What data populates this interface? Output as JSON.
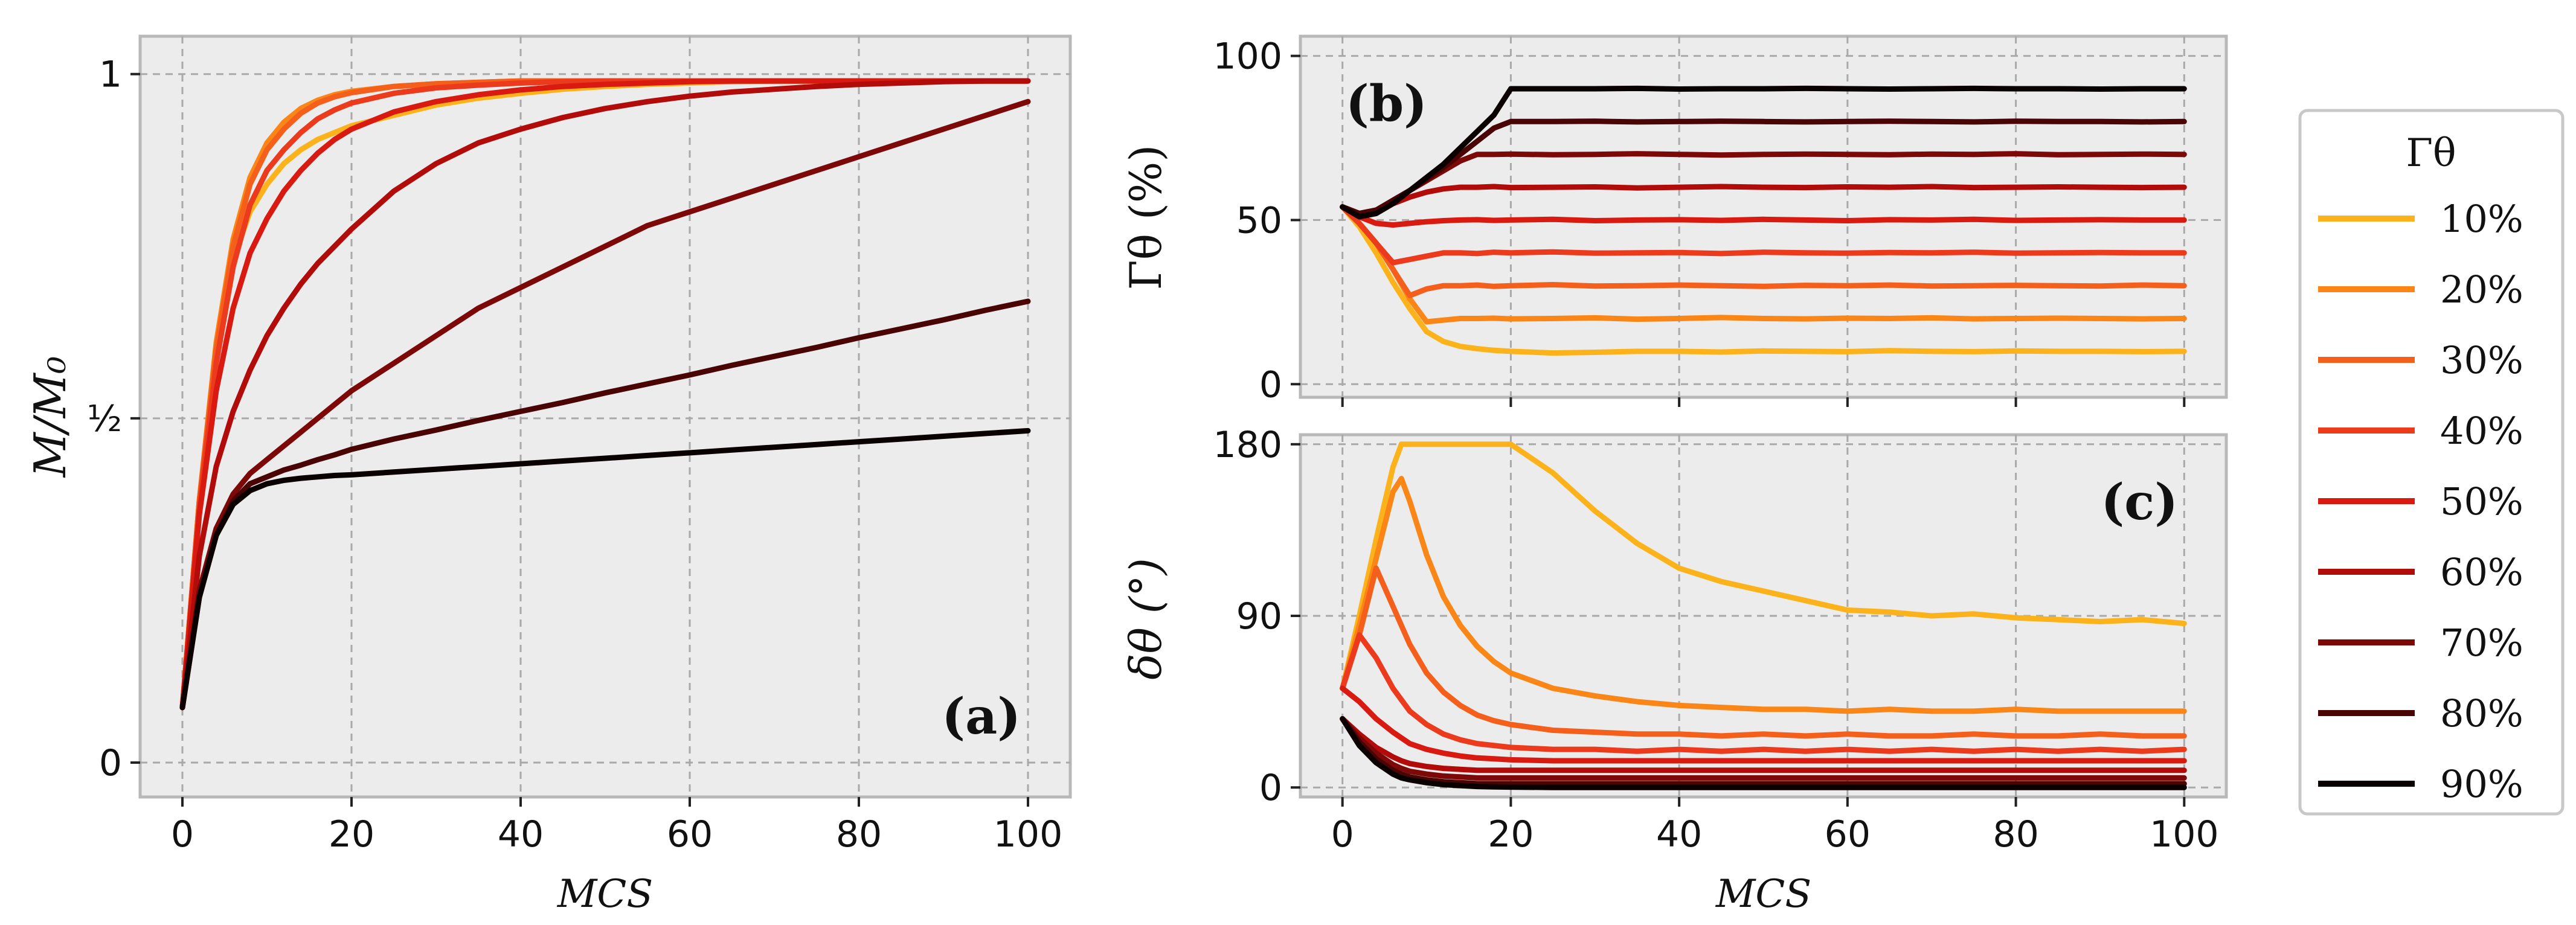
{
  "colors": {
    "panel_bg": "#ececec",
    "grid": "#a9a9a9",
    "series": [
      "#fcb31b",
      "#f98617",
      "#f45f1c",
      "#ec3a1c",
      "#d91a11",
      "#b20c0a",
      "#7d0808",
      "#4a0404",
      "#0a0000"
    ]
  },
  "chart_data": [
    {
      "panel": "a",
      "type": "line",
      "panel_label": "(a)",
      "xlabel": "MCS",
      "ylabel": "M/M₀",
      "xlim": [
        -5,
        105
      ],
      "ylim": [
        -0.05,
        1.055
      ],
      "xticks": [
        0,
        20,
        40,
        60,
        80,
        100
      ],
      "xtick_labels": [
        "0",
        "20",
        "40",
        "60",
        "80",
        "100"
      ],
      "yticks": [
        0,
        0.5,
        1
      ],
      "ytick_labels": [
        "0",
        "½",
        "1"
      ],
      "grid": true,
      "x": [
        0,
        2,
        4,
        6,
        8,
        10,
        12,
        14,
        16,
        18,
        20,
        25,
        30,
        35,
        40,
        45,
        50,
        55,
        60,
        65,
        70,
        75,
        80,
        85,
        90,
        95,
        100
      ],
      "series": [
        {
          "name": "10%",
          "values": [
            0.08,
            0.38,
            0.59,
            0.73,
            0.8,
            0.84,
            0.87,
            0.89,
            0.905,
            0.915,
            0.925,
            0.94,
            0.955,
            0.965,
            0.972,
            0.978,
            0.982,
            0.985,
            0.987,
            0.989,
            0.99,
            0.99,
            0.99,
            0.99,
            0.99,
            0.99,
            0.99
          ]
        },
        {
          "name": "20%",
          "values": [
            0.08,
            0.38,
            0.61,
            0.76,
            0.85,
            0.9,
            0.93,
            0.95,
            0.962,
            0.97,
            0.975,
            0.982,
            0.986,
            0.988,
            0.99,
            0.99,
            0.99,
            0.99,
            0.99,
            0.99,
            0.99,
            0.99,
            0.99,
            0.99,
            0.99,
            0.99,
            0.99
          ]
        },
        {
          "name": "30%",
          "values": [
            0.08,
            0.38,
            0.6,
            0.75,
            0.84,
            0.89,
            0.92,
            0.943,
            0.958,
            0.967,
            0.973,
            0.982,
            0.986,
            0.988,
            0.99,
            0.99,
            0.99,
            0.99,
            0.99,
            0.99,
            0.99,
            0.99,
            0.99,
            0.99,
            0.99,
            0.99,
            0.99
          ]
        },
        {
          "name": "40%",
          "values": [
            0.08,
            0.37,
            0.58,
            0.72,
            0.81,
            0.86,
            0.89,
            0.915,
            0.935,
            0.948,
            0.958,
            0.972,
            0.98,
            0.984,
            0.987,
            0.989,
            0.99,
            0.99,
            0.99,
            0.99,
            0.99,
            0.99,
            0.99,
            0.99,
            0.99,
            0.99,
            0.99
          ]
        },
        {
          "name": "50%",
          "values": [
            0.08,
            0.36,
            0.54,
            0.66,
            0.74,
            0.79,
            0.83,
            0.86,
            0.885,
            0.905,
            0.92,
            0.945,
            0.96,
            0.97,
            0.977,
            0.982,
            0.985,
            0.987,
            0.989,
            0.99,
            0.99,
            0.99,
            0.99,
            0.99,
            0.99,
            0.99,
            0.99
          ]
        },
        {
          "name": "60%",
          "values": [
            0.08,
            0.3,
            0.43,
            0.51,
            0.57,
            0.62,
            0.66,
            0.695,
            0.725,
            0.75,
            0.775,
            0.83,
            0.87,
            0.9,
            0.92,
            0.937,
            0.95,
            0.96,
            0.968,
            0.974,
            0.978,
            0.982,
            0.985,
            0.987,
            0.989,
            0.99,
            0.99
          ]
        },
        {
          "name": "70%",
          "values": [
            0.08,
            0.25,
            0.34,
            0.39,
            0.42,
            0.44,
            0.46,
            0.48,
            0.5,
            0.52,
            0.54,
            0.58,
            0.62,
            0.66,
            0.69,
            0.72,
            0.75,
            0.78,
            0.8,
            0.82,
            0.84,
            0.86,
            0.88,
            0.9,
            0.92,
            0.94,
            0.96
          ]
        },
        {
          "name": "80%",
          "values": [
            0.08,
            0.24,
            0.33,
            0.38,
            0.405,
            0.415,
            0.425,
            0.432,
            0.44,
            0.447,
            0.455,
            0.47,
            0.483,
            0.497,
            0.51,
            0.523,
            0.537,
            0.55,
            0.563,
            0.577,
            0.59,
            0.603,
            0.617,
            0.63,
            0.643,
            0.657,
            0.67
          ]
        },
        {
          "name": "90%",
          "values": [
            0.08,
            0.24,
            0.33,
            0.375,
            0.395,
            0.405,
            0.41,
            0.413,
            0.415,
            0.417,
            0.418,
            0.422,
            0.426,
            0.43,
            0.434,
            0.438,
            0.442,
            0.446,
            0.45,
            0.454,
            0.458,
            0.462,
            0.466,
            0.47,
            0.474,
            0.478,
            0.482
          ]
        }
      ]
    },
    {
      "panel": "b",
      "type": "line",
      "panel_label": "(b)",
      "xlabel": "",
      "ylabel": "Γθ (%)",
      "xlim": [
        -5,
        105
      ],
      "ylim": [
        -4,
        106
      ],
      "xticks": [
        0,
        20,
        40,
        60,
        80,
        100
      ],
      "xtick_labels": [],
      "yticks": [
        0,
        50,
        100
      ],
      "ytick_labels": [
        "0",
        "50",
        "100"
      ],
      "grid": true,
      "x": [
        0,
        2,
        4,
        6,
        8,
        10,
        12,
        14,
        16,
        18,
        20,
        25,
        30,
        35,
        40,
        45,
        50,
        55,
        60,
        65,
        70,
        75,
        80,
        85,
        90,
        95,
        100
      ],
      "series": [
        {
          "name": "10%",
          "values": [
            54,
            48,
            40,
            31,
            23,
            16,
            13,
            11.5,
            10.8,
            10.3,
            10,
            9.5,
            9.7,
            10,
            10,
            9.8,
            10.1,
            10,
            9.9,
            10.2,
            10,
            9.9,
            10.1,
            10,
            10,
            9.9,
            10
          ]
        },
        {
          "name": "20%",
          "values": [
            54,
            49,
            43,
            35,
            26,
            19,
            19.5,
            20,
            20,
            20.1,
            19.9,
            20,
            20.2,
            19.8,
            20,
            20.3,
            20,
            19.9,
            20.1,
            20,
            20.2,
            19.9,
            20,
            20.1,
            20,
            19.9,
            20
          ]
        },
        {
          "name": "30%",
          "values": [
            54,
            49,
            43,
            35,
            27,
            29,
            30,
            30,
            30.2,
            29.8,
            30,
            30.3,
            29.9,
            30,
            30.2,
            30,
            29.8,
            30.1,
            30,
            30.2,
            29.9,
            30,
            30.1,
            30,
            29.9,
            30.2,
            30
          ]
        },
        {
          "name": "40%",
          "values": [
            54,
            49,
            43,
            37,
            38,
            39,
            40,
            40,
            39.8,
            40.2,
            40,
            40.3,
            39.9,
            40,
            40.1,
            39.8,
            40.2,
            40,
            39.9,
            40.1,
            40,
            40.2,
            39.9,
            40,
            40.1,
            40,
            40
          ]
        },
        {
          "name": "50%",
          "values": [
            54,
            51,
            49,
            48.5,
            49,
            49.5,
            49.8,
            50,
            50.1,
            49.9,
            50,
            50.2,
            49.8,
            50,
            50.1,
            49.9,
            50.2,
            50,
            49.8,
            50.1,
            50,
            50.2,
            49.9,
            50,
            50.1,
            50,
            50
          ]
        },
        {
          "name": "60%",
          "values": [
            54,
            52,
            53,
            55,
            57,
            58.5,
            59.5,
            60,
            60,
            60.2,
            59.9,
            60,
            60.1,
            59.8,
            60,
            60.2,
            60,
            59.9,
            60.1,
            60,
            60.2,
            59.9,
            60,
            60.1,
            60,
            59.9,
            60
          ]
        },
        {
          "name": "70%",
          "values": [
            54,
            52,
            53,
            56,
            59,
            62,
            65,
            68,
            70,
            70,
            70.1,
            69.9,
            70,
            70.2,
            70,
            69.8,
            70,
            70.1,
            70,
            69.9,
            70.1,
            70,
            70.2,
            69.9,
            70,
            70.1,
            70
          ]
        },
        {
          "name": "80%",
          "values": [
            54,
            52,
            53,
            56,
            59,
            62.5,
            66,
            70,
            74,
            78,
            80,
            80,
            80.1,
            79.9,
            80,
            80.1,
            80,
            79.9,
            80,
            80.1,
            80,
            79.9,
            80.1,
            80,
            80,
            79.9,
            80
          ]
        },
        {
          "name": "90%",
          "values": [
            54,
            51,
            52,
            55,
            59,
            63,
            67,
            72,
            77,
            82,
            90,
            90,
            90,
            90.1,
            89.9,
            90,
            90,
            90.1,
            90,
            89.9,
            90,
            90.1,
            90,
            90,
            89.9,
            90,
            90
          ]
        }
      ]
    },
    {
      "panel": "c",
      "type": "line",
      "panel_label": "(c)",
      "xlabel": "MCS",
      "ylabel": "δθ (°)",
      "xlim": [
        -5,
        105
      ],
      "ylim": [
        -5,
        185
      ],
      "xticks": [
        0,
        20,
        40,
        60,
        80,
        100
      ],
      "xtick_labels": [
        "0",
        "20",
        "40",
        "60",
        "80",
        "100"
      ],
      "yticks": [
        0,
        90,
        180
      ],
      "ytick_labels": [
        "0",
        "90",
        "180"
      ],
      "grid": true,
      "x": [
        0,
        2,
        4,
        6,
        7,
        8,
        10,
        12,
        14,
        16,
        18,
        20,
        25,
        30,
        35,
        40,
        45,
        50,
        55,
        60,
        65,
        70,
        75,
        80,
        85,
        90,
        95,
        100
      ],
      "series": [
        {
          "name": "10%",
          "values": [
            52,
            90,
            130,
            168,
            180,
            180,
            180,
            180,
            180,
            180,
            180,
            180,
            165,
            145,
            128,
            115,
            108,
            103,
            98,
            93,
            92,
            90,
            91,
            89,
            88,
            87,
            88,
            86
          ]
        },
        {
          "name": "20%",
          "values": [
            52,
            85,
            120,
            155,
            162,
            150,
            122,
            100,
            85,
            74,
            66,
            60,
            52,
            48,
            45,
            43,
            42,
            41,
            41,
            40,
            41,
            40,
            40,
            41,
            40,
            40,
            40,
            40
          ]
        },
        {
          "name": "30%",
          "values": [
            52,
            80,
            115,
            95,
            85,
            75,
            60,
            50,
            43,
            38,
            35,
            33,
            30,
            29,
            28,
            28,
            27,
            28,
            27,
            28,
            27,
            27,
            28,
            27,
            27,
            28,
            27,
            27
          ]
        },
        {
          "name": "40%",
          "values": [
            52,
            80,
            68,
            52,
            46,
            40,
            33,
            28,
            25,
            23,
            22,
            21,
            20,
            20,
            19,
            20,
            19,
            20,
            19,
            20,
            19,
            20,
            19,
            20,
            19,
            20,
            19,
            20
          ]
        },
        {
          "name": "50%",
          "values": [
            52,
            45,
            36,
            29,
            26,
            23,
            20,
            18,
            16.5,
            15.5,
            15,
            14.5,
            14,
            14,
            14,
            14,
            14,
            14,
            14,
            14,
            14,
            14,
            14,
            14,
            14,
            14,
            14,
            14
          ]
        },
        {
          "name": "60%",
          "values": [
            36,
            28,
            21,
            16,
            14,
            12.5,
            11,
            10,
            9.5,
            9,
            9,
            9,
            9,
            9,
            9,
            9,
            9,
            9,
            9,
            9,
            9,
            9,
            9,
            9,
            9,
            9,
            9,
            9
          ]
        },
        {
          "name": "70%",
          "values": [
            36,
            26,
            18,
            12,
            10,
            8.5,
            7,
            6,
            5.5,
            5,
            5,
            5,
            5,
            5,
            5,
            5,
            5,
            5,
            5,
            5,
            5,
            5,
            5,
            5,
            5,
            5,
            5,
            5
          ]
        },
        {
          "name": "80%",
          "values": [
            36,
            24,
            15,
            9,
            7,
            5.5,
            4,
            3,
            2.5,
            2,
            2,
            2,
            2,
            2,
            2,
            2,
            2,
            2,
            2,
            2,
            2,
            2,
            2,
            2,
            2,
            2,
            2,
            2
          ]
        },
        {
          "name": "90%",
          "values": [
            36,
            22,
            13,
            7,
            5,
            4,
            2.5,
            1.5,
            1,
            0.5,
            0.3,
            0.2,
            0,
            0,
            0,
            0,
            0,
            0,
            0,
            0,
            0,
            0,
            0,
            0,
            0,
            0,
            0,
            0
          ]
        }
      ]
    }
  ],
  "legend": {
    "title": "Γθ",
    "placement": "right",
    "entries": [
      "10%",
      "20%",
      "30%",
      "40%",
      "50%",
      "60%",
      "70%",
      "80%",
      "90%"
    ]
  }
}
